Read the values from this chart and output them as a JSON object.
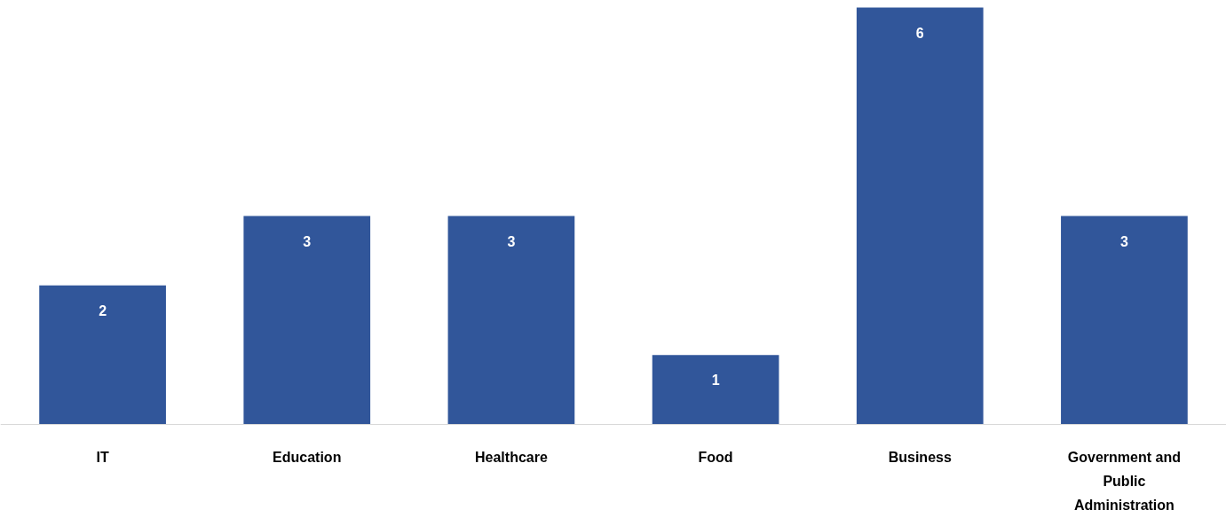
{
  "chart_data": {
    "type": "bar",
    "categories": [
      "IT",
      "Education",
      "Healthcare",
      "Food",
      "Business",
      "Government and Public Administration"
    ],
    "values": [
      2,
      3,
      3,
      1,
      6,
      3
    ],
    "color": "#31569a",
    "data_labels": true
  }
}
